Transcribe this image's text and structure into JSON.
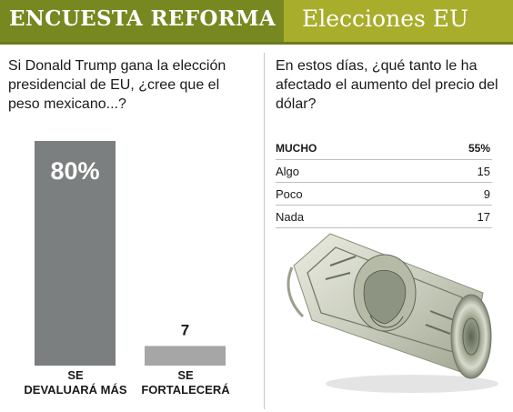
{
  "header": {
    "brand": "ENCUESTA REFORMA",
    "section": "Elecciones EU"
  },
  "left": {
    "question": "Si Donald Trump gana la elección presidencial de EU, ¿cree que el peso mexicano...?",
    "bar_value_labels": [
      "80%",
      "7"
    ],
    "category_labels": [
      "SE\nDEVALUARÁ MÁS",
      "SE\nFORTALECERÁ"
    ]
  },
  "right": {
    "question": "En estos días, ¿qué tanto le ha afectado el aumento del precio del dólar?",
    "rows": [
      {
        "label": "MUCHO",
        "value": "55%"
      },
      {
        "label": "Algo",
        "value": "15"
      },
      {
        "label": "Poco",
        "value": "9"
      },
      {
        "label": "Nada",
        "value": "17"
      }
    ]
  },
  "colors": {
    "header_dark": "#76881f",
    "header_light": "#a9ad2c",
    "bar_devaluara": "#7c7f7f",
    "bar_fortalecera": "#a6a6a6"
  },
  "illustration": {
    "icon": "rolled-dollar-bill-icon"
  },
  "chart_data": [
    {
      "type": "bar",
      "title": "Si Donald Trump gana la elección presidencial de EU, ¿cree que el peso mexicano...?",
      "categories": [
        "SE DEVALUARÁ MÁS",
        "SE FORTALECERÁ"
      ],
      "values": [
        80,
        7
      ],
      "ylim": [
        0,
        80
      ],
      "grid": false
    },
    {
      "type": "table",
      "title": "En estos días, ¿qué tanto le ha afectado el aumento del precio del dólar?",
      "categories": [
        "MUCHO",
        "Algo",
        "Poco",
        "Nada"
      ],
      "values": [
        55,
        15,
        9,
        17
      ]
    }
  ]
}
